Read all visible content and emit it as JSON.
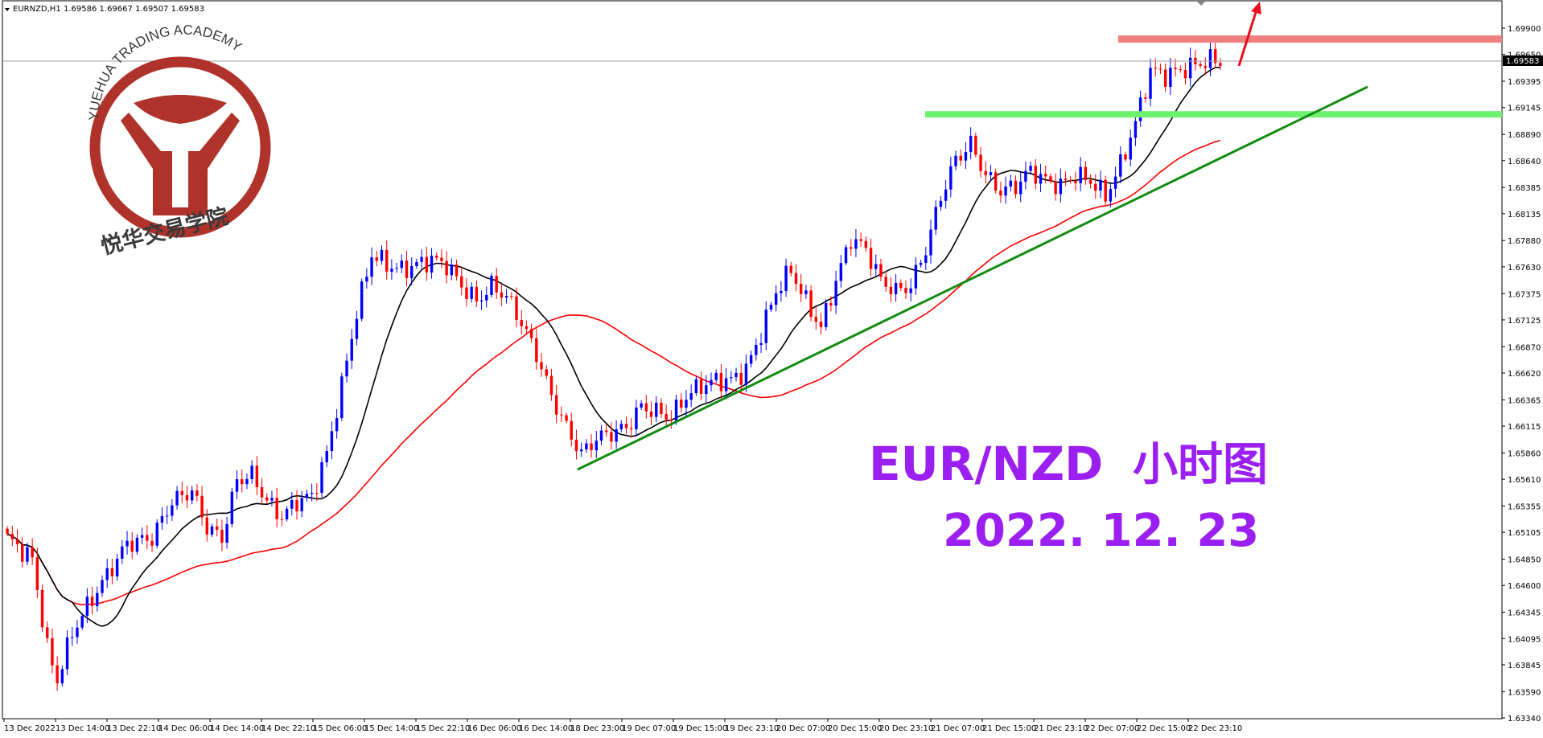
{
  "header": {
    "symbol": "EURNZD,H1",
    "ohlc": "1.69586 1.69667 1.69507 1.69583"
  },
  "logo": {
    "text_top": "YUEHUA TRADING ACADEMY",
    "text_bottom": "悦华交易学院",
    "color": "#b0332b"
  },
  "overlay": {
    "title_en": "EUR/NZD",
    "title_cn": "小时图",
    "date": "2022. 12. 23",
    "color": "#9a1ff0"
  },
  "price_axis": {
    "labels": [
      "1.69900",
      "1.69650",
      "1.69395",
      "1.69145",
      "1.68890",
      "1.68640",
      "1.68385",
      "1.68135",
      "1.67880",
      "1.67630",
      "1.67375",
      "1.67125",
      "1.66870",
      "1.66620",
      "1.66365",
      "1.66115",
      "1.65860",
      "1.65610",
      "1.65355",
      "1.65105",
      "1.64850",
      "1.64600",
      "1.64345",
      "1.64095",
      "1.63845",
      "1.63590",
      "1.63340"
    ],
    "current_price": "1.69583",
    "ylim": [
      1.6334,
      1.699
    ]
  },
  "time_axis": {
    "labels": [
      "13 Dec 2022",
      "13 Dec 14:00",
      "13 Dec 22:10",
      "14 Dec 06:00",
      "14 Dec 14:00",
      "14 Dec 22:10",
      "15 Dec 06:00",
      "15 Dec 14:00",
      "15 Dec 22:10",
      "16 Dec 06:00",
      "16 Dec 14:00",
      "18 Dec 23:00",
      "19 Dec 07:00",
      "19 Dec 15:00",
      "19 Dec 23:10",
      "20 Dec 07:00",
      "20 Dec 15:00",
      "20 Dec 23:10",
      "21 Dec 07:00",
      "21 Dec 15:00",
      "21 Dec 23:10",
      "22 Dec 07:00",
      "22 Dec 15:00",
      "22 Dec 23:10"
    ]
  },
  "chart_data": {
    "type": "candlestick",
    "title": "EUR/NZD 小时图",
    "ylim": [
      1.6334,
      1.699
    ],
    "bull_color": "#0000ff",
    "bear_color": "#ff0000",
    "waypoints": [
      [
        0,
        1.6505
      ],
      [
        5,
        1.6485
      ],
      [
        8,
        1.64
      ],
      [
        10,
        1.637
      ],
      [
        13,
        1.6415
      ],
      [
        16,
        1.644
      ],
      [
        20,
        1.647
      ],
      [
        24,
        1.65
      ],
      [
        29,
        1.6505
      ],
      [
        33,
        1.654
      ],
      [
        37,
        1.655
      ],
      [
        40,
        1.6515
      ],
      [
        43,
        1.6505
      ],
      [
        46,
        1.656
      ],
      [
        49,
        1.6565
      ],
      [
        52,
        1.654
      ],
      [
        55,
        1.6525
      ],
      [
        58,
        1.654
      ],
      [
        61,
        1.6545
      ],
      [
        64,
        1.6585
      ],
      [
        67,
        1.665
      ],
      [
        70,
        1.672
      ],
      [
        73,
        1.6775
      ],
      [
        76,
        1.6765
      ],
      [
        79,
        1.676
      ],
      [
        82,
        1.6765
      ],
      [
        85,
        1.677
      ],
      [
        88,
        1.6765
      ],
      [
        91,
        1.6745
      ],
      [
        94,
        1.673
      ],
      [
        97,
        1.6745
      ],
      [
        100,
        1.6735
      ],
      [
        103,
        1.671
      ],
      [
        106,
        1.668
      ],
      [
        109,
        1.664
      ],
      [
        112,
        1.661
      ],
      [
        115,
        1.6585
      ],
      [
        118,
        1.66
      ],
      [
        121,
        1.6605
      ],
      [
        124,
        1.661
      ],
      [
        127,
        1.663
      ],
      [
        130,
        1.6625
      ],
      [
        133,
        1.662
      ],
      [
        136,
        1.664
      ],
      [
        139,
        1.665
      ],
      [
        142,
        1.6655
      ],
      [
        145,
        1.6655
      ],
      [
        148,
        1.6665
      ],
      [
        151,
        1.67
      ],
      [
        154,
        1.674
      ],
      [
        157,
        1.676
      ],
      [
        160,
        1.673
      ],
      [
        163,
        1.6705
      ],
      [
        166,
        1.675
      ],
      [
        169,
        1.679
      ],
      [
        172,
        1.678
      ],
      [
        175,
        1.675
      ],
      [
        178,
        1.674
      ],
      [
        181,
        1.6745
      ],
      [
        184,
        1.678
      ],
      [
        187,
        1.683
      ],
      [
        190,
        1.6865
      ],
      [
        193,
        1.688
      ],
      [
        196,
        1.685
      ],
      [
        199,
        1.6835
      ],
      [
        202,
        1.684
      ],
      [
        205,
        1.6855
      ],
      [
        208,
        1.6845
      ],
      [
        211,
        1.684
      ],
      [
        214,
        1.685
      ],
      [
        217,
        1.6845
      ],
      [
        220,
        1.683
      ],
      [
        223,
        1.686
      ],
      [
        226,
        1.69
      ],
      [
        229,
        1.695
      ],
      [
        232,
        1.6945
      ],
      [
        235,
        1.695
      ],
      [
        238,
        1.6955
      ],
      [
        241,
        1.696
      ],
      [
        243,
        1.6958
      ]
    ],
    "ma_fast_color": "#000000",
    "ma_slow_color": "#ff0000",
    "resistance": {
      "price": 1.698,
      "color": "#f08080"
    },
    "support": {
      "price": 1.6908,
      "color": "#6ef26e"
    },
    "trendline": {
      "from": [
        1.6572
      ],
      "to": [
        1.6935
      ],
      "color": "#128c12"
    }
  }
}
